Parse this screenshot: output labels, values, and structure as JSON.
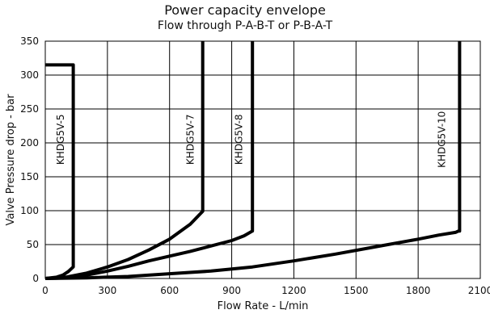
{
  "chart_data": {
    "type": "line",
    "title": "Power capacity envelope",
    "subtitle": "Flow through P-A-B-T or P-B-A-T",
    "xlabel": "Flow Rate - L/min",
    "ylabel": "Valve Pressure drop - bar",
    "xlim": [
      0,
      2100
    ],
    "ylim": [
      0,
      350
    ],
    "xticks": [
      "0",
      "300",
      "600",
      "900",
      "1200",
      "1500",
      "1800",
      "2100"
    ],
    "yticks": [
      "0",
      "50",
      "100",
      "150",
      "200",
      "250",
      "300",
      "350"
    ],
    "grid": true,
    "series": [
      {
        "name": "KHDG5V-5",
        "points": [
          [
            0,
            315
          ],
          [
            135,
            315
          ],
          [
            135,
            17
          ],
          [
            110,
            10
          ],
          [
            85,
            5
          ],
          [
            55,
            2
          ],
          [
            0,
            0
          ]
        ],
        "label_at": [
          75,
          205
        ]
      },
      {
        "name": "KHDG5V-7",
        "points": [
          [
            0,
            0
          ],
          [
            100,
            2
          ],
          [
            200,
            8
          ],
          [
            300,
            17
          ],
          [
            400,
            28
          ],
          [
            500,
            42
          ],
          [
            600,
            58
          ],
          [
            700,
            80
          ],
          [
            760,
            99
          ],
          [
            760,
            350
          ]
        ],
        "label_at": [
          700,
          205
        ]
      },
      {
        "name": "KHDG5V-8",
        "points": [
          [
            0,
            0
          ],
          [
            100,
            1
          ],
          [
            200,
            5
          ],
          [
            300,
            11
          ],
          [
            400,
            18
          ],
          [
            500,
            26
          ],
          [
            600,
            33
          ],
          [
            700,
            40
          ],
          [
            800,
            48
          ],
          [
            900,
            56
          ],
          [
            960,
            63
          ],
          [
            1000,
            70
          ],
          [
            1000,
            350
          ]
        ],
        "label_at": [
          935,
          205
        ]
      },
      {
        "name": "KHDG5V-10",
        "points": [
          [
            0,
            0
          ],
          [
            200,
            1
          ],
          [
            400,
            3
          ],
          [
            600,
            7
          ],
          [
            800,
            11
          ],
          [
            1000,
            17
          ],
          [
            1200,
            26
          ],
          [
            1400,
            36
          ],
          [
            1600,
            47
          ],
          [
            1800,
            58
          ],
          [
            1900,
            64
          ],
          [
            1980,
            68
          ],
          [
            1995,
            70
          ],
          [
            2000,
            70
          ],
          [
            2000,
            350
          ]
        ],
        "label_at": [
          1915,
          205
        ]
      }
    ]
  }
}
